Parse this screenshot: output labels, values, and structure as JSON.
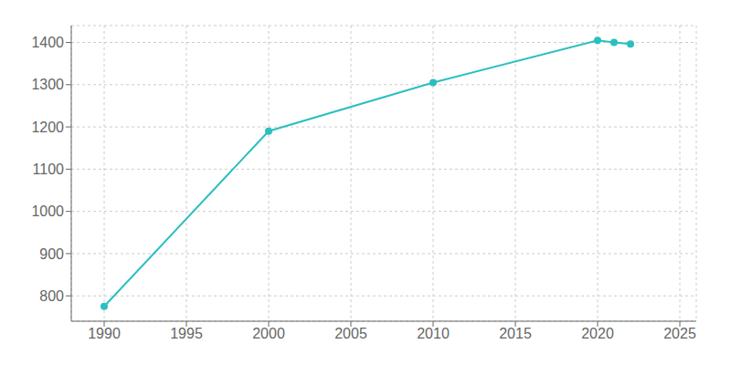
{
  "chart_data": {
    "type": "line",
    "x": [
      1990,
      2000,
      2010,
      2020,
      2021,
      2022
    ],
    "values": [
      775,
      1190,
      1305,
      1405,
      1400,
      1396
    ],
    "color": "#2bbfbf",
    "marker": "circle",
    "xlim": [
      1988,
      2026
    ],
    "ylim": [
      740,
      1440
    ],
    "xticks": [
      1990,
      1995,
      2000,
      2005,
      2010,
      2015,
      2020,
      2025
    ],
    "yticks": [
      800,
      900,
      1000,
      1100,
      1200,
      1300,
      1400
    ],
    "grid": true
  }
}
